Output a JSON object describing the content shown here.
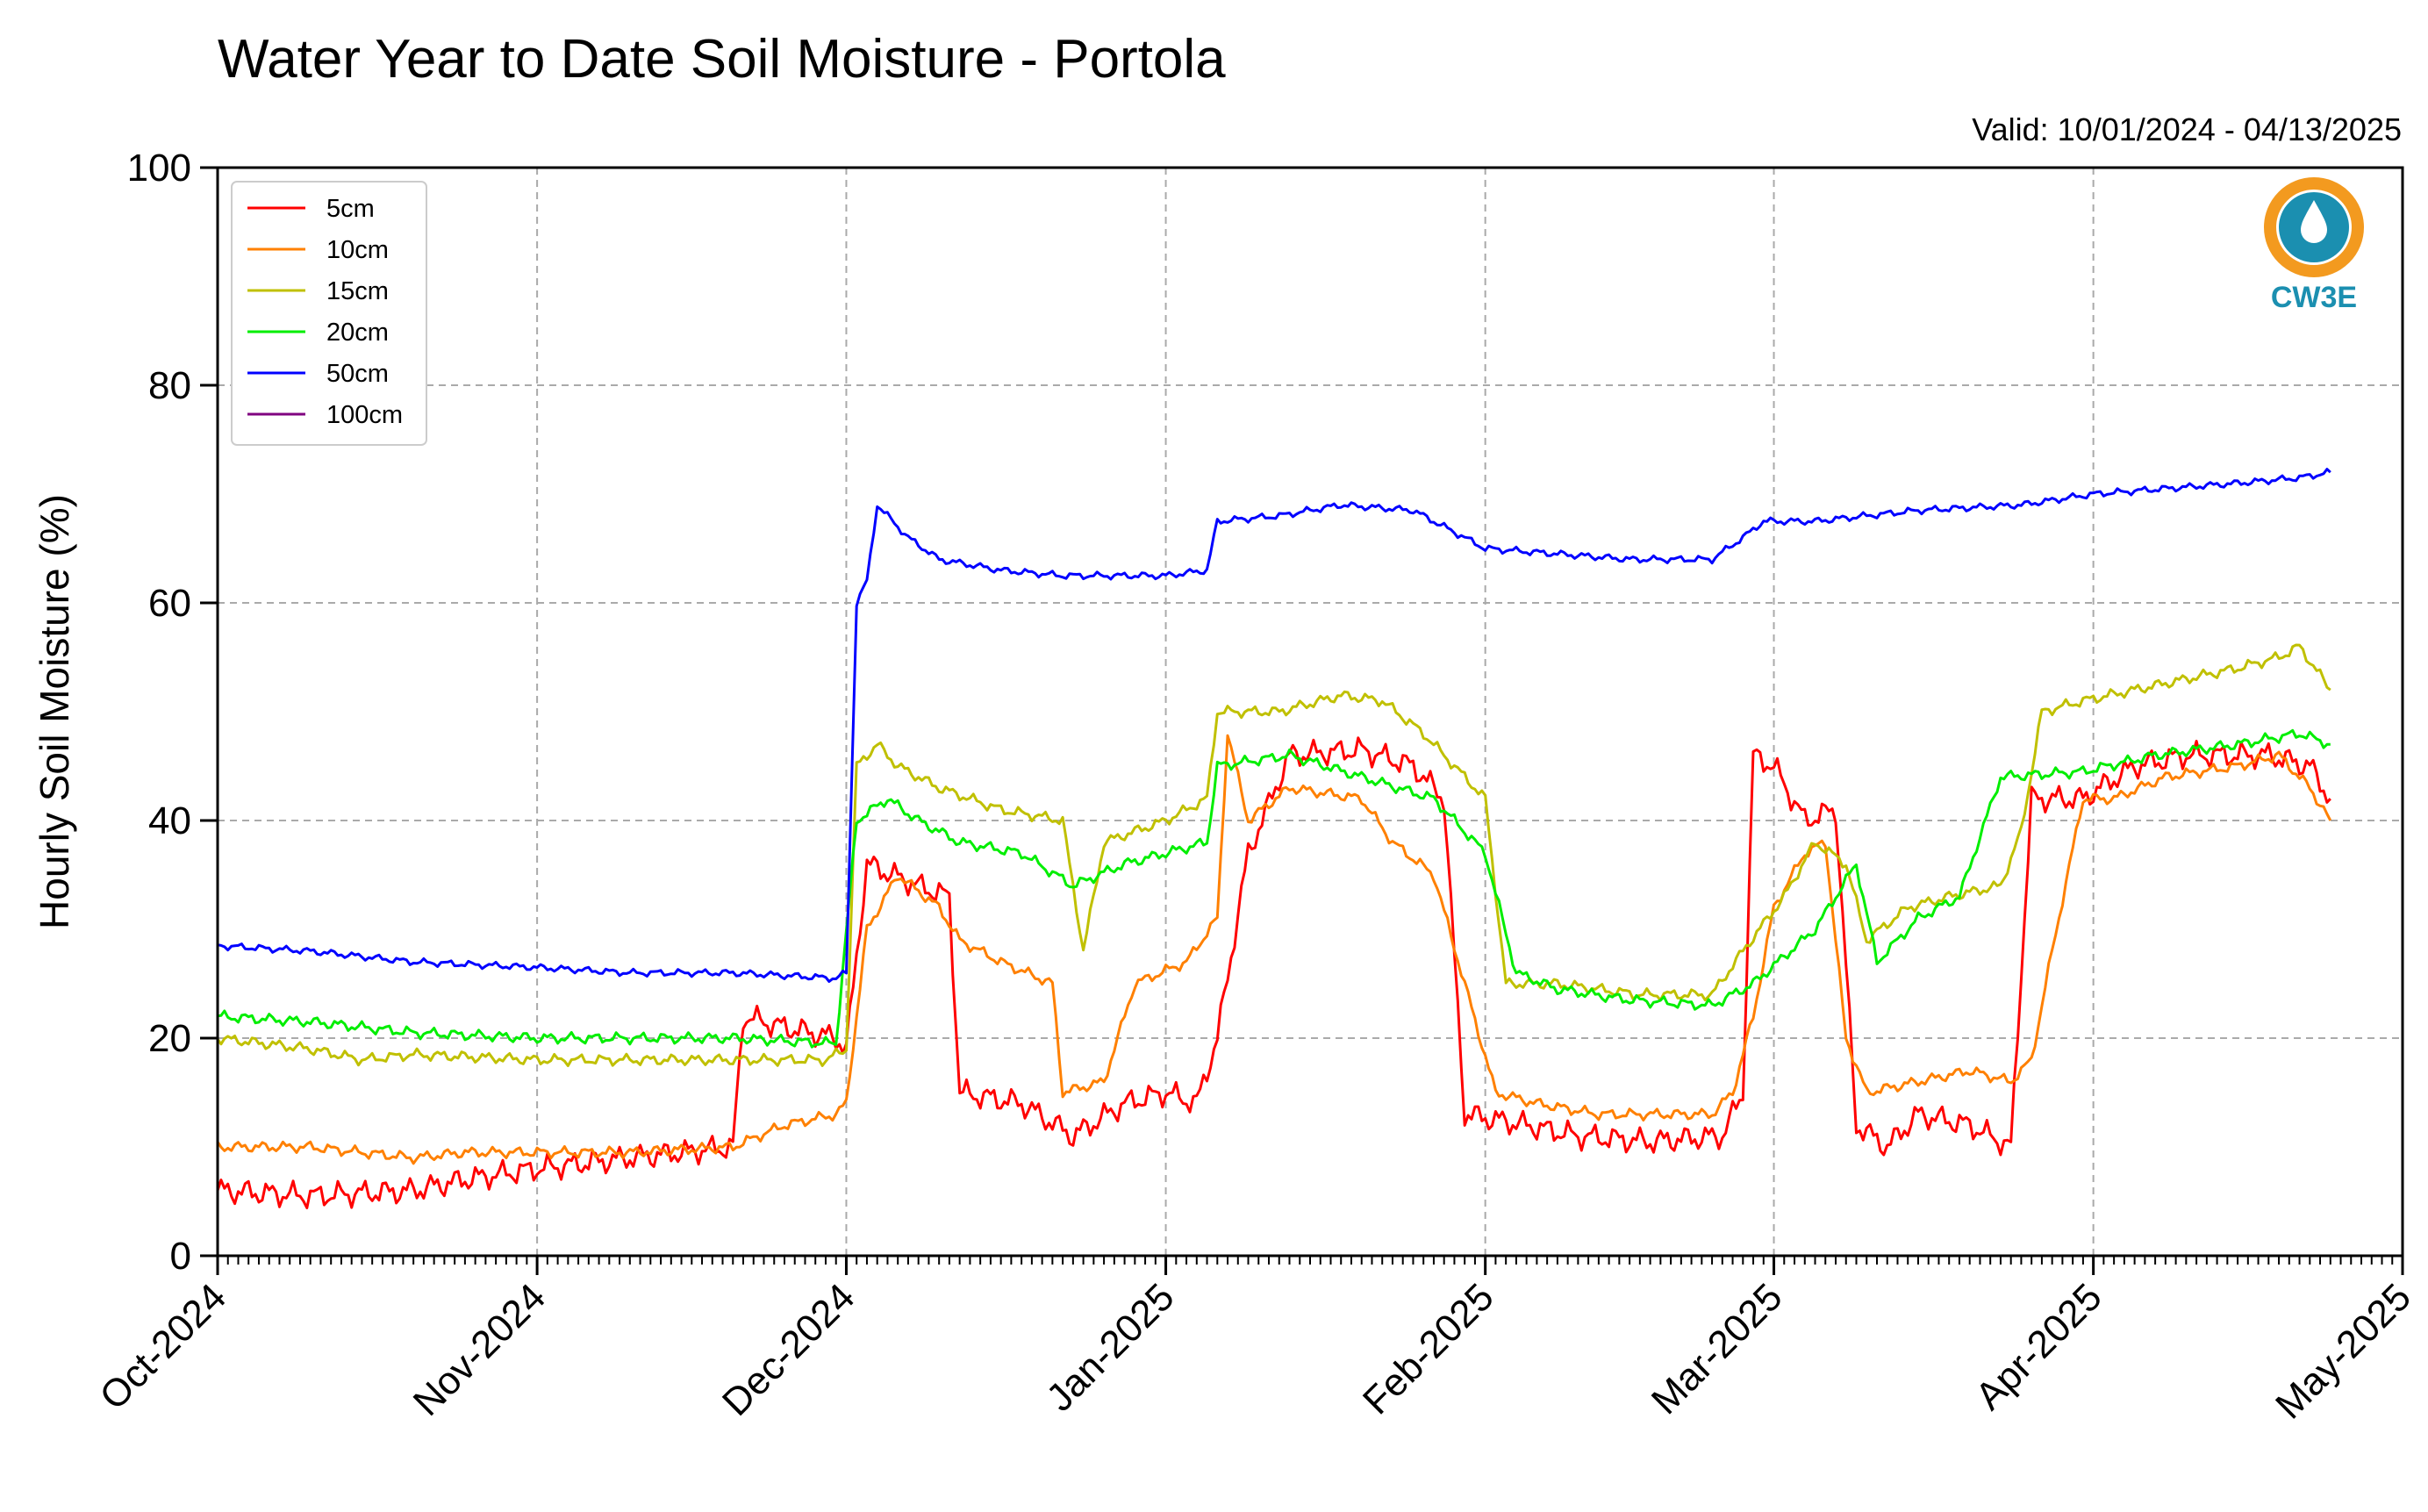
{
  "chart_data": {
    "type": "line",
    "title": "Water Year to Date Soil Moisture - Portola",
    "subtitle": "Valid: 10/01/2024 - 04/13/2025",
    "ylabel": "Hourly Soil Moisture (%)",
    "xlabel": "",
    "ylim": [
      0,
      100
    ],
    "xlim": [
      "2024-10-01",
      "2025-05-01"
    ],
    "yticks": [
      0,
      20,
      40,
      60,
      80,
      100
    ],
    "x_tick_labels": [
      "Oct-2024",
      "Nov-2024",
      "Dec-2024",
      "Jan-2025",
      "Feb-2025",
      "Mar-2025",
      "Apr-2025",
      "May-2025"
    ],
    "x_tick_dates": [
      "2024-10-01",
      "2024-11-01",
      "2024-12-01",
      "2025-01-01",
      "2025-02-01",
      "2025-03-01",
      "2025-04-01",
      "2025-05-01"
    ],
    "grid": true,
    "legend_position": "top-left",
    "series": [
      {
        "name": "5cm",
        "color": "#ff0000",
        "points": [
          [
            "2024-10-01",
            6
          ],
          [
            "2024-10-10",
            5.5
          ],
          [
            "2024-10-20",
            6
          ],
          [
            "2024-10-25",
            7
          ],
          [
            "2024-11-01",
            8
          ],
          [
            "2024-11-10",
            9
          ],
          [
            "2024-11-20",
            10
          ],
          [
            "2024-11-21",
            22
          ],
          [
            "2024-11-25",
            21
          ],
          [
            "2024-11-30",
            20
          ],
          [
            "2024-12-01",
            19
          ],
          [
            "2024-12-03",
            36
          ],
          [
            "2024-12-08",
            34
          ],
          [
            "2024-12-11",
            33
          ],
          [
            "2024-12-12",
            15
          ],
          [
            "2024-12-18",
            14
          ],
          [
            "2024-12-23",
            11
          ],
          [
            "2024-12-28",
            14
          ],
          [
            "2025-01-01",
            15
          ],
          [
            "2025-01-04",
            14
          ],
          [
            "2025-01-06",
            20
          ],
          [
            "2025-01-09",
            37
          ],
          [
            "2025-01-13",
            46
          ],
          [
            "2025-01-20",
            46.5
          ],
          [
            "2025-01-25",
            45
          ],
          [
            "2025-01-28",
            42
          ],
          [
            "2025-01-30",
            13
          ],
          [
            "2025-02-05",
            12
          ],
          [
            "2025-02-10",
            11
          ],
          [
            "2025-02-17",
            10.5
          ],
          [
            "2025-02-24",
            11
          ],
          [
            "2025-02-26",
            15
          ],
          [
            "2025-02-27",
            46
          ],
          [
            "2025-03-01",
            45
          ],
          [
            "2025-03-04",
            40
          ],
          [
            "2025-03-07",
            41
          ],
          [
            "2025-03-09",
            12
          ],
          [
            "2025-03-12",
            10
          ],
          [
            "2025-03-15",
            13
          ],
          [
            "2025-03-20",
            12
          ],
          [
            "2025-03-24",
            10
          ],
          [
            "2025-03-26",
            42
          ],
          [
            "2025-03-31",
            42
          ],
          [
            "2025-04-05",
            45
          ],
          [
            "2025-04-10",
            46
          ],
          [
            "2025-04-15",
            46
          ],
          [
            "2025-04-18",
            46
          ],
          [
            "2025-04-22",
            45
          ],
          [
            "2025-04-24",
            42
          ]
        ]
      },
      {
        "name": "10cm",
        "color": "#ff8000",
        "points": [
          [
            "2024-10-01",
            10
          ],
          [
            "2024-10-10",
            10
          ],
          [
            "2024-10-20",
            9
          ],
          [
            "2024-10-25",
            9.5
          ],
          [
            "2024-11-01",
            9.5
          ],
          [
            "2024-11-10",
            9.5
          ],
          [
            "2024-11-20",
            10
          ],
          [
            "2024-11-25",
            12
          ],
          [
            "2024-11-30",
            13
          ],
          [
            "2024-12-01",
            14
          ],
          [
            "2024-12-03",
            30
          ],
          [
            "2024-12-06",
            35
          ],
          [
            "2024-12-10",
            32
          ],
          [
            "2024-12-12",
            29
          ],
          [
            "2024-12-16",
            27
          ],
          [
            "2024-12-21",
            25
          ],
          [
            "2024-12-22",
            15
          ],
          [
            "2024-12-26",
            16
          ],
          [
            "2024-12-29",
            25
          ],
          [
            "2025-01-03",
            27
          ],
          [
            "2025-01-06",
            31
          ],
          [
            "2025-01-07",
            48
          ],
          [
            "2025-01-09",
            40
          ],
          [
            "2025-01-13",
            43
          ],
          [
            "2025-01-20",
            42
          ],
          [
            "2025-01-23",
            38
          ],
          [
            "2025-01-27",
            35
          ],
          [
            "2025-01-30",
            25
          ],
          [
            "2025-02-02",
            15
          ],
          [
            "2025-02-06",
            14
          ],
          [
            "2025-02-12",
            13
          ],
          [
            "2025-02-17",
            13
          ],
          [
            "2025-02-23",
            13
          ],
          [
            "2025-02-25",
            15
          ],
          [
            "2025-02-27",
            22
          ],
          [
            "2025-03-01",
            32
          ],
          [
            "2025-03-04",
            37
          ],
          [
            "2025-03-06",
            38
          ],
          [
            "2025-03-08",
            20
          ],
          [
            "2025-03-10",
            15
          ],
          [
            "2025-03-15",
            16
          ],
          [
            "2025-03-20",
            17
          ],
          [
            "2025-03-24",
            16
          ],
          [
            "2025-03-26",
            18
          ],
          [
            "2025-03-28",
            28
          ],
          [
            "2025-03-31",
            42
          ],
          [
            "2025-04-03",
            42
          ],
          [
            "2025-04-08",
            44
          ],
          [
            "2025-04-15",
            45
          ],
          [
            "2025-04-19",
            46
          ],
          [
            "2025-04-22",
            43
          ],
          [
            "2025-04-24",
            40
          ]
        ]
      },
      {
        "name": "15cm",
        "color": "#c0c000",
        "points": [
          [
            "2024-10-01",
            20
          ],
          [
            "2024-10-10",
            19
          ],
          [
            "2024-10-15",
            18
          ],
          [
            "2024-10-20",
            18.5
          ],
          [
            "2024-11-01",
            18
          ],
          [
            "2024-11-10",
            18
          ],
          [
            "2024-11-20",
            18
          ],
          [
            "2024-11-29",
            18
          ],
          [
            "2024-12-01",
            19
          ],
          [
            "2024-12-02",
            45
          ],
          [
            "2024-12-04",
            47
          ],
          [
            "2024-12-06",
            45
          ],
          [
            "2024-12-10",
            43
          ],
          [
            "2024-12-16",
            41
          ],
          [
            "2024-12-22",
            40
          ],
          [
            "2024-12-24",
            28
          ],
          [
            "2024-12-26",
            38
          ],
          [
            "2025-01-01",
            40
          ],
          [
            "2025-01-05",
            42
          ],
          [
            "2025-01-06",
            50
          ],
          [
            "2025-01-12",
            50
          ],
          [
            "2025-01-18",
            51.5
          ],
          [
            "2025-01-22",
            51
          ],
          [
            "2025-01-26",
            48
          ],
          [
            "2025-01-30",
            44
          ],
          [
            "2025-02-01",
            42
          ],
          [
            "2025-02-03",
            25
          ],
          [
            "2025-02-08",
            25
          ],
          [
            "2025-02-16",
            24
          ],
          [
            "2025-02-23",
            24
          ],
          [
            "2025-02-26",
            28
          ],
          [
            "2025-03-02",
            33
          ],
          [
            "2025-03-05",
            38
          ],
          [
            "2025-03-08",
            36
          ],
          [
            "2025-03-10",
            29
          ],
          [
            "2025-03-14",
            32
          ],
          [
            "2025-03-18",
            33
          ],
          [
            "2025-03-23",
            34
          ],
          [
            "2025-03-25",
            39
          ],
          [
            "2025-03-27",
            50
          ],
          [
            "2025-03-31",
            51
          ],
          [
            "2025-04-05",
            52
          ],
          [
            "2025-04-10",
            53
          ],
          [
            "2025-04-15",
            54
          ],
          [
            "2025-04-19",
            55
          ],
          [
            "2025-04-21",
            56
          ],
          [
            "2025-04-24",
            52
          ]
        ]
      },
      {
        "name": "20cm",
        "color": "#00ee00",
        "points": [
          [
            "2024-10-01",
            22
          ],
          [
            "2024-10-10",
            21.5
          ],
          [
            "2024-10-20",
            20.5
          ],
          [
            "2024-11-01",
            20
          ],
          [
            "2024-11-10",
            20
          ],
          [
            "2024-11-20",
            20
          ],
          [
            "2024-11-30",
            19.5
          ],
          [
            "2024-12-02",
            40
          ],
          [
            "2024-12-05",
            42
          ],
          [
            "2024-12-08",
            40
          ],
          [
            "2024-12-12",
            38
          ],
          [
            "2024-12-18",
            37
          ],
          [
            "2024-12-23",
            34
          ],
          [
            "2024-12-28",
            36
          ],
          [
            "2025-01-01",
            37
          ],
          [
            "2025-01-05",
            38
          ],
          [
            "2025-01-06",
            45
          ],
          [
            "2025-01-13",
            46
          ],
          [
            "2025-01-20",
            44
          ],
          [
            "2025-01-27",
            42
          ],
          [
            "2025-02-01",
            37
          ],
          [
            "2025-02-04",
            26
          ],
          [
            "2025-02-08",
            24.5
          ],
          [
            "2025-02-15",
            23.5
          ],
          [
            "2025-02-23",
            23
          ],
          [
            "2025-02-27",
            25
          ],
          [
            "2025-03-05",
            30
          ],
          [
            "2025-03-09",
            36
          ],
          [
            "2025-03-11",
            27
          ],
          [
            "2025-03-15",
            31
          ],
          [
            "2025-03-19",
            33
          ],
          [
            "2025-03-23",
            44
          ],
          [
            "2025-03-31",
            44.5
          ],
          [
            "2025-04-07",
            46
          ],
          [
            "2025-04-15",
            47
          ],
          [
            "2025-04-21",
            48
          ],
          [
            "2025-04-24",
            47
          ]
        ]
      },
      {
        "name": "50cm",
        "color": "#0000ff",
        "points": [
          [
            "2024-10-01",
            28.5
          ],
          [
            "2024-10-10",
            28
          ],
          [
            "2024-10-20",
            27
          ],
          [
            "2024-11-01",
            26.5
          ],
          [
            "2024-11-10",
            26
          ],
          [
            "2024-11-20",
            26
          ],
          [
            "2024-11-30",
            25.5
          ],
          [
            "2024-12-01",
            26
          ],
          [
            "2024-12-02",
            60
          ],
          [
            "2024-12-03",
            62
          ],
          [
            "2024-12-04",
            69
          ],
          [
            "2024-12-07",
            66
          ],
          [
            "2024-12-10",
            64
          ],
          [
            "2024-12-16",
            63
          ],
          [
            "2024-12-22",
            62.5
          ],
          [
            "2024-12-28",
            62.5
          ],
          [
            "2025-01-01",
            62.5
          ],
          [
            "2025-01-05",
            63
          ],
          [
            "2025-01-06",
            67.5
          ],
          [
            "2025-01-12",
            68
          ],
          [
            "2025-01-18",
            69
          ],
          [
            "2025-01-25",
            68.5
          ],
          [
            "2025-01-28",
            67
          ],
          [
            "2025-02-01",
            65
          ],
          [
            "2025-02-08",
            64.5
          ],
          [
            "2025-02-15",
            64
          ],
          [
            "2025-02-23",
            64
          ],
          [
            "2025-02-26",
            66
          ],
          [
            "2025-02-28",
            67.5
          ],
          [
            "2025-03-05",
            67.5
          ],
          [
            "2025-03-10",
            68
          ],
          [
            "2025-03-15",
            68.5
          ],
          [
            "2025-03-25",
            69
          ],
          [
            "2025-04-01",
            70
          ],
          [
            "2025-04-08",
            70.5
          ],
          [
            "2025-04-15",
            71
          ],
          [
            "2025-04-21",
            71.5
          ],
          [
            "2025-04-24",
            72
          ]
        ]
      },
      {
        "name": "100cm",
        "color": "#800080",
        "points": []
      }
    ]
  },
  "logo": {
    "text": "CW3E",
    "color": "#1b8fb0",
    "accent": "#f39a1f"
  }
}
